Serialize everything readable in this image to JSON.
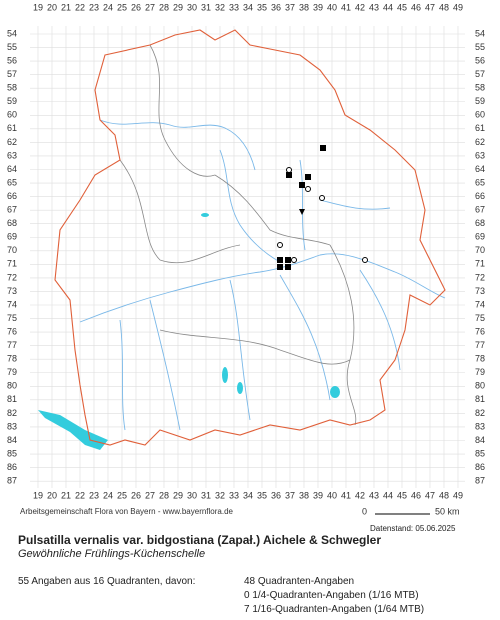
{
  "map": {
    "grid": {
      "columns": [
        19,
        20,
        21,
        22,
        23,
        24,
        25,
        26,
        27,
        28,
        29,
        30,
        31,
        32,
        33,
        34,
        35,
        36,
        37,
        38,
        39,
        40,
        41,
        42,
        43,
        44,
        45,
        46,
        47,
        48,
        49
      ],
      "rows": [
        54,
        55,
        56,
        57,
        58,
        59,
        60,
        61,
        62,
        63,
        64,
        65,
        66,
        67,
        68,
        69,
        70,
        71,
        72,
        73,
        74,
        75,
        76,
        77,
        78,
        79,
        80,
        81,
        82,
        83,
        84,
        85,
        86,
        87
      ]
    },
    "credit": "Arbeitsgemeinschaft Flora von Bayern - www.bayernflora.de",
    "scale": {
      "start": "0",
      "end": "50 km"
    },
    "date": "Datenstand: 05.06.2025"
  },
  "species": {
    "title": "Pulsatilla vernalis var. bidgostiana (Zapał.) Aichele & Schwegler",
    "common_name": "Gewöhnliche Frühlings-Küchenschelle"
  },
  "stats": {
    "summary": "55 Angaben aus 16 Quadranten, davon:",
    "lines": [
      "48 Quadranten-Angaben",
      "0 1/4-Quadranten-Angaben (1/16 MTB)",
      "7 1/16-Quadranten-Angaben (1/64 MTB)"
    ]
  }
}
